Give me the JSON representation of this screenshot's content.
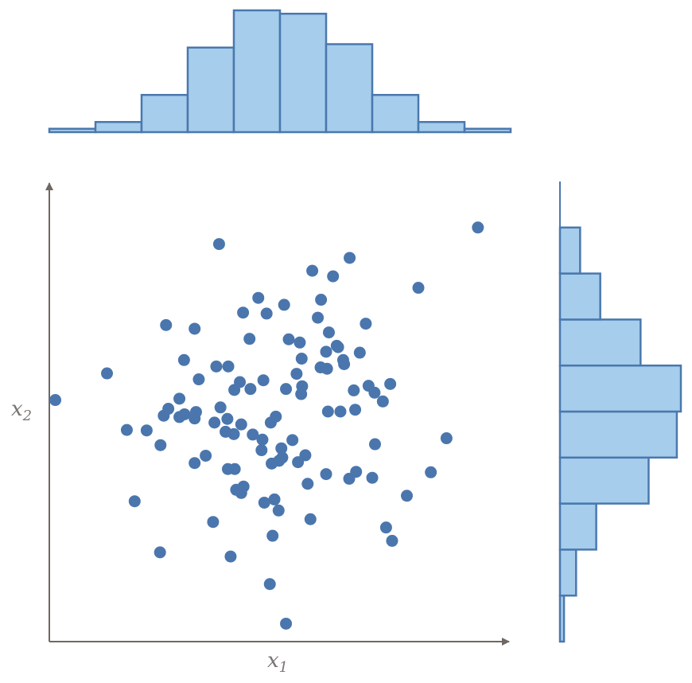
{
  "chart_data": {
    "type": "scatter",
    "xlabel": "x",
    "xlabel_sub": "1",
    "ylabel": "x",
    "ylabel_sub": "2",
    "x_range": [
      0,
      1
    ],
    "y_range": [
      0,
      1
    ],
    "grid": false,
    "colors": {
      "points": "#4a76ad",
      "hist_fill": "#a6cdec",
      "hist_stroke": "#4a78ae",
      "axis": "#6e6864"
    },
    "points": [
      {
        "x": 0.929,
        "y": 0.9
      },
      {
        "x": 0.368,
        "y": 0.864
      },
      {
        "x": 0.651,
        "y": 0.834
      },
      {
        "x": 0.57,
        "y": 0.806
      },
      {
        "x": 0.615,
        "y": 0.794
      },
      {
        "x": 0.8,
        "y": 0.769
      },
      {
        "x": 0.453,
        "y": 0.747
      },
      {
        "x": 0.589,
        "y": 0.743
      },
      {
        "x": 0.509,
        "y": 0.732
      },
      {
        "x": 0.42,
        "y": 0.715
      },
      {
        "x": 0.471,
        "y": 0.713
      },
      {
        "x": 0.582,
        "y": 0.704
      },
      {
        "x": 0.686,
        "y": 0.691
      },
      {
        "x": 0.253,
        "y": 0.688
      },
      {
        "x": 0.315,
        "y": 0.68
      },
      {
        "x": 0.606,
        "y": 0.672
      },
      {
        "x": 0.434,
        "y": 0.658
      },
      {
        "x": 0.519,
        "y": 0.657
      },
      {
        "x": 0.543,
        "y": 0.65
      },
      {
        "x": 0.623,
        "y": 0.643
      },
      {
        "x": 0.626,
        "y": 0.64
      },
      {
        "x": 0.6,
        "y": 0.63
      },
      {
        "x": 0.673,
        "y": 0.628
      },
      {
        "x": 0.292,
        "y": 0.612
      },
      {
        "x": 0.547,
        "y": 0.615
      },
      {
        "x": 0.637,
        "y": 0.612
      },
      {
        "x": 0.639,
        "y": 0.603
      },
      {
        "x": 0.362,
        "y": 0.598
      },
      {
        "x": 0.388,
        "y": 0.598
      },
      {
        "x": 0.588,
        "y": 0.596
      },
      {
        "x": 0.602,
        "y": 0.593
      },
      {
        "x": 0.125,
        "y": 0.583
      },
      {
        "x": 0.536,
        "y": 0.582
      },
      {
        "x": 0.324,
        "y": 0.57
      },
      {
        "x": 0.464,
        "y": 0.568
      },
      {
        "x": 0.413,
        "y": 0.564
      },
      {
        "x": 0.739,
        "y": 0.56
      },
      {
        "x": 0.692,
        "y": 0.556
      },
      {
        "x": 0.548,
        "y": 0.555
      },
      {
        "x": 0.436,
        "y": 0.549
      },
      {
        "x": 0.513,
        "y": 0.549
      },
      {
        "x": 0.401,
        "y": 0.547
      },
      {
        "x": 0.66,
        "y": 0.546
      },
      {
        "x": 0.705,
        "y": 0.541
      },
      {
        "x": 0.546,
        "y": 0.538
      },
      {
        "x": 0.282,
        "y": 0.528
      },
      {
        "x": 0.013,
        "y": 0.525
      },
      {
        "x": 0.723,
        "y": 0.522
      },
      {
        "x": 0.371,
        "y": 0.509
      },
      {
        "x": 0.663,
        "y": 0.504
      },
      {
        "x": 0.258,
        "y": 0.506
      },
      {
        "x": 0.604,
        "y": 0.5
      },
      {
        "x": 0.631,
        "y": 0.5
      },
      {
        "x": 0.318,
        "y": 0.499
      },
      {
        "x": 0.248,
        "y": 0.491
      },
      {
        "x": 0.293,
        "y": 0.494
      },
      {
        "x": 0.491,
        "y": 0.489
      },
      {
        "x": 0.282,
        "y": 0.488
      },
      {
        "x": 0.315,
        "y": 0.485
      },
      {
        "x": 0.386,
        "y": 0.484
      },
      {
        "x": 0.358,
        "y": 0.476
      },
      {
        "x": 0.48,
        "y": 0.476
      },
      {
        "x": 0.416,
        "y": 0.472
      },
      {
        "x": 0.168,
        "y": 0.46
      },
      {
        "x": 0.211,
        "y": 0.459
      },
      {
        "x": 0.382,
        "y": 0.456
      },
      {
        "x": 0.4,
        "y": 0.451
      },
      {
        "x": 0.441,
        "y": 0.45
      },
      {
        "x": 0.861,
        "y": 0.442
      },
      {
        "x": 0.462,
        "y": 0.439
      },
      {
        "x": 0.527,
        "y": 0.438
      },
      {
        "x": 0.241,
        "y": 0.427
      },
      {
        "x": 0.706,
        "y": 0.429
      },
      {
        "x": 0.46,
        "y": 0.416
      },
      {
        "x": 0.503,
        "y": 0.42
      },
      {
        "x": 0.339,
        "y": 0.404
      },
      {
        "x": 0.555,
        "y": 0.405
      },
      {
        "x": 0.498,
        "y": 0.393
      },
      {
        "x": 0.505,
        "y": 0.4
      },
      {
        "x": 0.315,
        "y": 0.388
      },
      {
        "x": 0.482,
        "y": 0.387
      },
      {
        "x": 0.539,
        "y": 0.39
      },
      {
        "x": 0.387,
        "y": 0.375
      },
      {
        "x": 0.402,
        "y": 0.375
      },
      {
        "x": 0.827,
        "y": 0.368
      },
      {
        "x": 0.665,
        "y": 0.369
      },
      {
        "x": 0.6,
        "y": 0.364
      },
      {
        "x": 0.65,
        "y": 0.354
      },
      {
        "x": 0.7,
        "y": 0.356
      },
      {
        "x": 0.56,
        "y": 0.343
      },
      {
        "x": 0.421,
        "y": 0.337
      },
      {
        "x": 0.416,
        "y": 0.323
      },
      {
        "x": 0.405,
        "y": 0.33
      },
      {
        "x": 0.775,
        "y": 0.317
      },
      {
        "x": 0.466,
        "y": 0.302
      },
      {
        "x": 0.488,
        "y": 0.309
      },
      {
        "x": 0.185,
        "y": 0.305
      },
      {
        "x": 0.497,
        "y": 0.285
      },
      {
        "x": 0.566,
        "y": 0.266
      },
      {
        "x": 0.355,
        "y": 0.26
      },
      {
        "x": 0.73,
        "y": 0.248
      },
      {
        "x": 0.484,
        "y": 0.23
      },
      {
        "x": 0.743,
        "y": 0.219
      },
      {
        "x": 0.24,
        "y": 0.194
      },
      {
        "x": 0.393,
        "y": 0.185
      },
      {
        "x": 0.478,
        "y": 0.125
      },
      {
        "x": 0.513,
        "y": 0.039
      }
    ],
    "hist_x": {
      "bin_edges": [
        0.0,
        0.1,
        0.2,
        0.3,
        0.4,
        0.5,
        0.6,
        0.7,
        0.8,
        0.9,
        1.0
      ],
      "counts": [
        1,
        3,
        11,
        25,
        36,
        35,
        26,
        11,
        3,
        1
      ]
    },
    "hist_y": {
      "bin_edges": [
        0.0,
        0.1,
        0.2,
        0.3,
        0.4,
        0.5,
        0.6,
        0.7,
        0.8,
        0.9,
        1.0
      ],
      "counts": [
        1,
        4,
        9,
        22,
        29,
        30,
        20,
        10,
        5,
        0
      ]
    }
  }
}
